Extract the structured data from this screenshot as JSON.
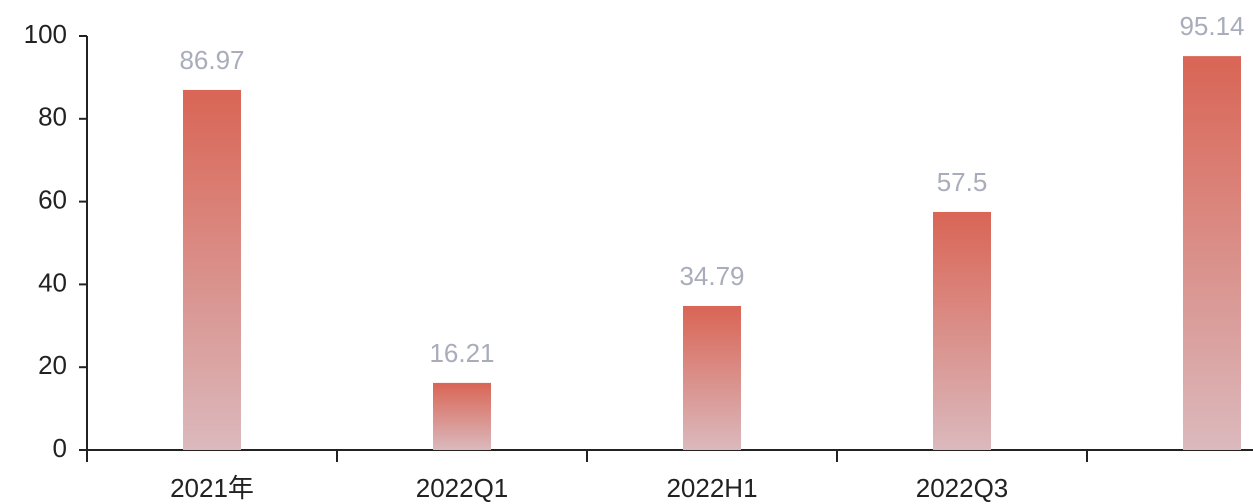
{
  "chart_data": {
    "type": "bar",
    "categories": [
      "2021年",
      "2022Q1",
      "2022H1",
      "2022Q3",
      null
    ],
    "values": [
      86.97,
      16.21,
      34.79,
      57.5,
      95.14
    ],
    "color": "#d96555",
    "color_bottom": "#dbb9bd",
    "ylim": [
      0,
      100
    ],
    "yticks": [
      0,
      20,
      40,
      60,
      80,
      100
    ],
    "grid": false
  }
}
